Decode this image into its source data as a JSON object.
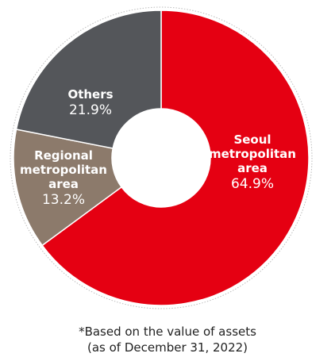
{
  "chart_data": {
    "type": "donut",
    "categories": [
      "Seoul\nmetropolitan\narea",
      "Regional\nmetropolitan\narea",
      "Others"
    ],
    "values": [
      64.9,
      13.2,
      21.9
    ],
    "value_labels": [
      "64.9%",
      "13.2%",
      "21.9%"
    ],
    "colors": [
      "#e50012",
      "#8c7a6b",
      "#54565a"
    ],
    "note": "*Based on the value of assets\n(as of December 31, 2022)"
  }
}
